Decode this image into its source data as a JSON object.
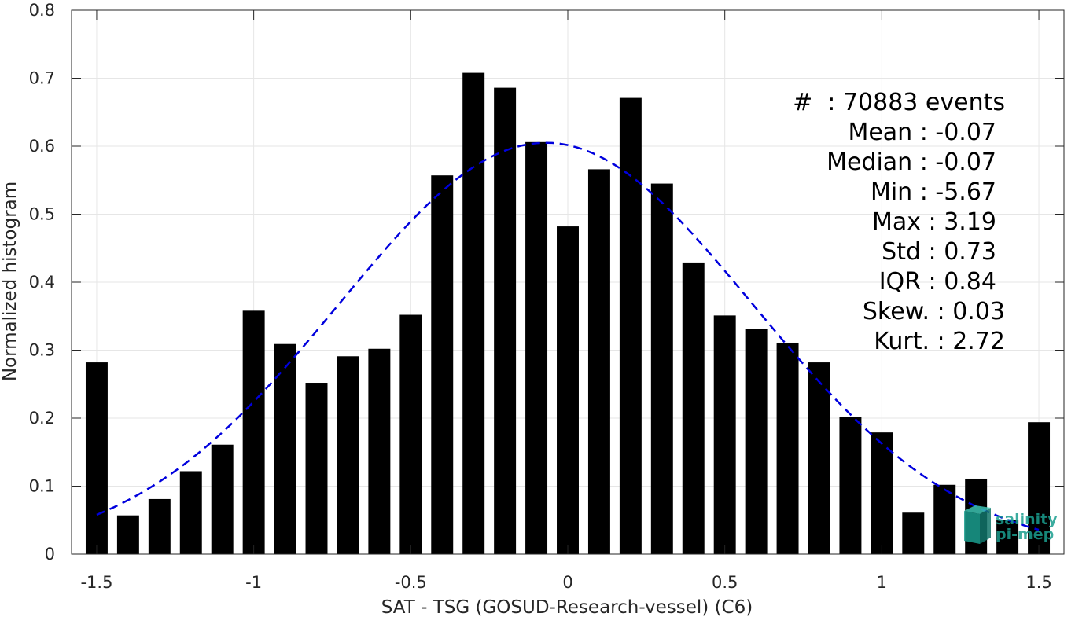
{
  "chart_data": {
    "type": "bar",
    "xlabel": "SAT - TSG (GOSUD-Research-vessel) (C6)",
    "ylabel": "Normalized histogram",
    "xlim": [
      -1.58,
      1.58
    ],
    "ylim": [
      0,
      0.8
    ],
    "x_ticks": [
      -1.5,
      -1,
      -0.5,
      0,
      0.5,
      1,
      1.5
    ],
    "x_tick_labels": [
      "-1.5",
      "-1",
      "-0.5",
      "0",
      "0.5",
      "1",
      "1.5"
    ],
    "y_ticks": [
      0,
      0.1,
      0.2,
      0.3,
      0.4,
      0.5,
      0.6,
      0.7,
      0.8
    ],
    "y_tick_labels": [
      "0",
      "0.1",
      "0.2",
      "0.3",
      "0.4",
      "0.5",
      "0.6",
      "0.7",
      "0.8"
    ],
    "grid": true,
    "bar_color": "#000000",
    "bar_width": 0.07,
    "x": [
      -1.5,
      -1.4,
      -1.3,
      -1.2,
      -1.1,
      -1.0,
      -0.9,
      -0.8,
      -0.7,
      -0.6,
      -0.5,
      -0.4,
      -0.3,
      -0.2,
      -0.1,
      0.0,
      0.1,
      0.2,
      0.3,
      0.4,
      0.5,
      0.6,
      0.7,
      0.8,
      0.9,
      1.0,
      1.1,
      1.2,
      1.3,
      1.4,
      1.5
    ],
    "values": [
      0.282,
      0.057,
      0.081,
      0.122,
      0.161,
      0.358,
      0.309,
      0.252,
      0.291,
      0.302,
      0.352,
      0.557,
      0.708,
      0.686,
      0.606,
      0.482,
      0.566,
      0.671,
      0.545,
      0.429,
      0.351,
      0.331,
      0.311,
      0.282,
      0.202,
      0.179,
      0.061,
      0.102,
      0.111,
      0.05,
      0.194
    ],
    "fit_curve": {
      "style": "dashed",
      "color": "#0000dd",
      "mean": -0.07,
      "std": 0.66,
      "amplitude": 0.605,
      "x_range": [
        -1.5,
        1.5
      ]
    },
    "stats": {
      "events": "#  : 70883 events",
      "mean": "Mean : -0.07",
      "median": "Median : -0.07",
      "min": "Min : -5.67",
      "max": "Max : 3.19",
      "std": "Std : 0.73",
      "iqr": "IQR : 0.84",
      "skew": "Skew. : 0.03",
      "kurt": "Kurt. : 2.72"
    },
    "logo": {
      "line1": "salinity",
      "line2": "pi-mep",
      "color": "#1a9e8f"
    }
  }
}
